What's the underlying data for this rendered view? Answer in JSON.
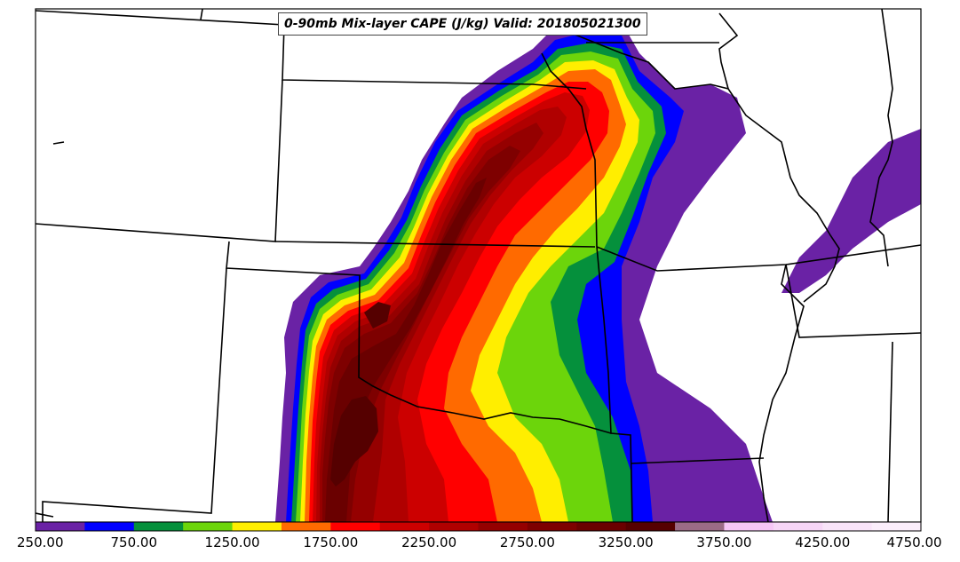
{
  "title": "0-90mb Mix-layer CAPE (J/kg) Valid: 201805021300",
  "colorbar": {
    "tick_labels": [
      "250.00",
      "750.00",
      "1250.00",
      "1750.00",
      "2250.00",
      "2750.00",
      "3250.00",
      "3750.00",
      "4250.00",
      "4750.00"
    ],
    "levels": [
      250,
      500,
      750,
      1000,
      1250,
      1500,
      1750,
      2000,
      2250,
      2500,
      2750,
      3000,
      3250,
      3500,
      3750,
      4000,
      4250,
      4500,
      4750
    ],
    "colors": [
      "#6a22a5",
      "#0000ff",
      "#05903c",
      "#6cd50b",
      "#ffee00",
      "#ff6a00",
      "#ff0000",
      "#cc0000",
      "#b00000",
      "#950000",
      "#7e0000",
      "#6a0000",
      "#550000",
      "#9b6b86",
      "#f6c6f6",
      "#f7d6f7",
      "#f9e4f9",
      "#fbeefb"
    ]
  }
}
